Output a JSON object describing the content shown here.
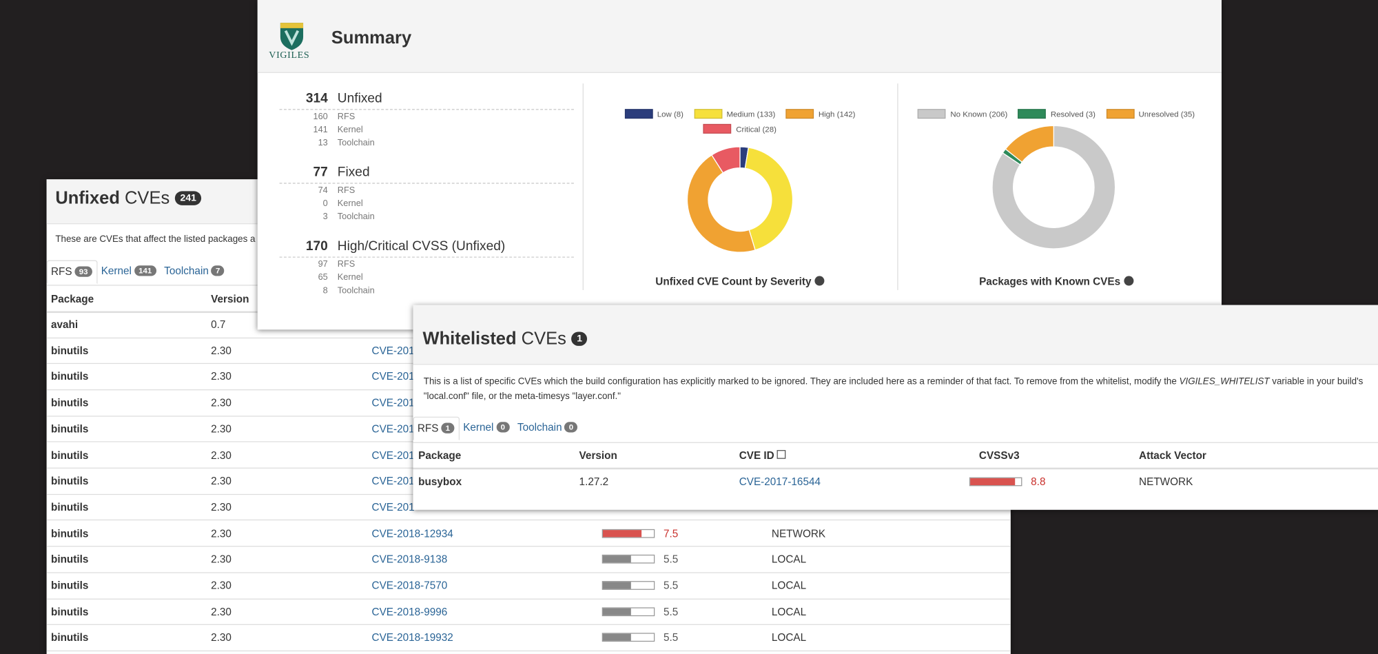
{
  "unfixed": {
    "title_bold": "Unfixed",
    "title_rest": "CVEs",
    "count": 241,
    "description": "These are CVEs that affect the listed packages a",
    "tabs": [
      {
        "label": "RFS",
        "count": 93
      },
      {
        "label": "Kernel",
        "count": 141
      },
      {
        "label": "Toolchain",
        "count": 7
      }
    ],
    "columns": [
      "Package",
      "Version"
    ],
    "rows": [
      {
        "package": "avahi",
        "version": "0.7"
      },
      {
        "package": "binutils",
        "version": "2.30",
        "cve": "CVE-201"
      },
      {
        "package": "binutils",
        "version": "2.30",
        "cve": "CVE-201"
      },
      {
        "package": "binutils",
        "version": "2.30",
        "cve": "CVE-201"
      },
      {
        "package": "binutils",
        "version": "2.30",
        "cve": "CVE-201"
      },
      {
        "package": "binutils",
        "version": "2.30",
        "cve": "CVE-201"
      },
      {
        "package": "binutils",
        "version": "2.30",
        "cve": "CVE-201"
      },
      {
        "package": "binutils",
        "version": "2.30",
        "cve": "CVE-201"
      },
      {
        "package": "binutils",
        "version": "2.30",
        "cve": "CVE-2018-12934",
        "score": 7.5,
        "vector": "NETWORK",
        "color": "#d9534f"
      },
      {
        "package": "binutils",
        "version": "2.30",
        "cve": "CVE-2018-9138",
        "score": 5.5,
        "vector": "LOCAL",
        "color": "#888888"
      },
      {
        "package": "binutils",
        "version": "2.30",
        "cve": "CVE-2018-7570",
        "score": 5.5,
        "vector": "LOCAL",
        "color": "#888888"
      },
      {
        "package": "binutils",
        "version": "2.30",
        "cve": "CVE-2018-9996",
        "score": 5.5,
        "vector": "LOCAL",
        "color": "#888888"
      },
      {
        "package": "binutils",
        "version": "2.30",
        "cve": "CVE-2018-19932",
        "score": 5.5,
        "vector": "LOCAL",
        "color": "#888888"
      }
    ]
  },
  "summary": {
    "logo_text": "VIGILES",
    "title": "Summary",
    "stats": [
      {
        "total": 314,
        "label": "Unfixed",
        "items": [
          {
            "value": 160,
            "label": "RFS"
          },
          {
            "value": 141,
            "label": "Kernel"
          },
          {
            "value": 13,
            "label": "Toolchain"
          }
        ]
      },
      {
        "total": 77,
        "label": "Fixed",
        "items": [
          {
            "value": 74,
            "label": "RFS"
          },
          {
            "value": 0,
            "label": "Kernel"
          },
          {
            "value": 3,
            "label": "Toolchain"
          }
        ]
      },
      {
        "total": 170,
        "label": "High/Critical CVSS (Unfixed)",
        "items": [
          {
            "value": 97,
            "label": "RFS"
          },
          {
            "value": 65,
            "label": "Kernel"
          },
          {
            "value": 8,
            "label": "Toolchain"
          }
        ]
      }
    ],
    "severity_chart": {
      "type": "donut",
      "title": "Unfixed CVE Count by Severity",
      "values": [
        8,
        133,
        142,
        28
      ],
      "value_labels": [
        "Low (8)",
        "Medium (133)",
        "High (142)",
        "Critical (28)"
      ],
      "colors": [
        "#2b3d7c",
        "#f6e03b",
        "#f0a232",
        "#e85a62"
      ]
    },
    "packages_chart": {
      "type": "donut",
      "title": "Packages with Known CVEs",
      "values": [
        206,
        3,
        35
      ],
      "value_labels": [
        "No Known (206)",
        "Resolved (3)",
        "Unresolved (35)"
      ],
      "colors": [
        "#c9c9c9",
        "#2e8a5a",
        "#f0a232"
      ]
    }
  },
  "whitelisted": {
    "title_bold": "Whitelisted",
    "title_rest": "CVEs",
    "count": 1,
    "description_before": "This is a list of specific CVEs which the build configuration has explicitly marked to be ignored. They are included here as a reminder of that fact. To remove from the whitelist, modify the ",
    "description_em": "VIGILES_WHITELIST",
    "description_after": " variable in your build's \"local.conf\" file, or the meta-timesys \"layer.conf.\"",
    "tabs": [
      {
        "label": "RFS",
        "count": 1
      },
      {
        "label": "Kernel",
        "count": 0
      },
      {
        "label": "Toolchain",
        "count": 0
      }
    ],
    "columns": [
      "Package",
      "Version",
      "CVE ID",
      "CVSSv3",
      "Attack Vector"
    ],
    "rows": [
      {
        "package": "busybox",
        "version": "1.27.2",
        "cve": "CVE-2017-16544",
        "score": 8.8,
        "vector": "NETWORK",
        "color": "#d9534f"
      }
    ]
  }
}
